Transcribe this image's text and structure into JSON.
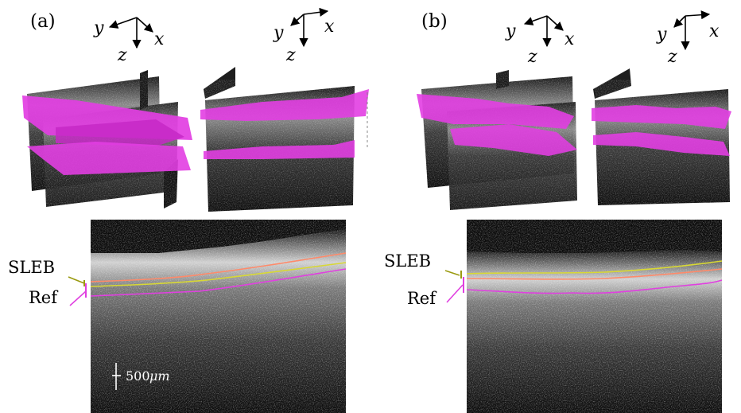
{
  "panels": [
    {
      "label": "(a)",
      "axes_triads": [
        {
          "x": "x",
          "y": "y",
          "z": "z"
        },
        {
          "x": "x",
          "y": "y",
          "z": "z"
        }
      ],
      "side_labels": {
        "sleb": "SLEB",
        "ref": "Ref"
      },
      "scale_bar": {
        "value": "500",
        "unit": "μm"
      }
    },
    {
      "label": "(b)",
      "axes_triads": [
        {
          "x": "x",
          "y": "y",
          "z": "z"
        },
        {
          "x": "x",
          "y": "y",
          "z": "z"
        }
      ],
      "side_labels": {
        "sleb": "SLEB",
        "ref": "Ref"
      }
    }
  ],
  "colors": {
    "surface": "#e23ee2",
    "surface_dark": "#a81aa8",
    "sleb_boundary": "#d8d834",
    "sleb_surface": "#ff8a6a",
    "ref_boundary": "#e040e0",
    "sleb_pointer": "#9a9a10",
    "ref_pointer": "#e040e0",
    "oct_background": "#0c0c0c",
    "tissue": "#9a9a9a"
  }
}
